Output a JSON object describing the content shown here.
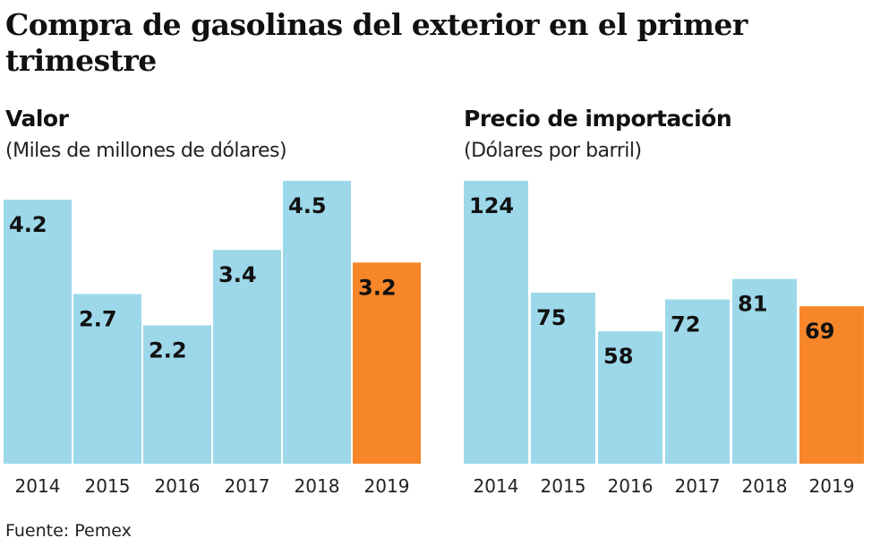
{
  "title": "Compra de gasolinas del exterior en el primer trimestre",
  "source": "Fuente: Pemex",
  "colors": {
    "base": "#9dd8ea",
    "highlight": "#f7862a"
  },
  "chart_data": [
    {
      "type": "bar",
      "title": "Valor",
      "subtitle": "(Miles de millones de dólares)",
      "categories": [
        "2014",
        "2015",
        "2016",
        "2017",
        "2018",
        "2019"
      ],
      "values": [
        4.2,
        2.7,
        2.2,
        3.4,
        4.5,
        3.2
      ],
      "labels": [
        "4.2",
        "2.7",
        "2.2",
        "3.4",
        "4.5",
        "3.2"
      ],
      "highlight": "2019",
      "ylim": [
        0,
        4.5
      ],
      "grid": false
    },
    {
      "type": "bar",
      "title": "Precio de importación",
      "subtitle": "(Dólares por barril)",
      "categories": [
        "2014",
        "2015",
        "2016",
        "2017",
        "2018",
        "2019"
      ],
      "values": [
        124,
        75,
        58,
        72,
        81,
        69
      ],
      "labels": [
        "124",
        "75",
        "58",
        "72",
        "81",
        "69"
      ],
      "highlight": "2019",
      "ylim": [
        0,
        124
      ],
      "grid": false
    }
  ]
}
